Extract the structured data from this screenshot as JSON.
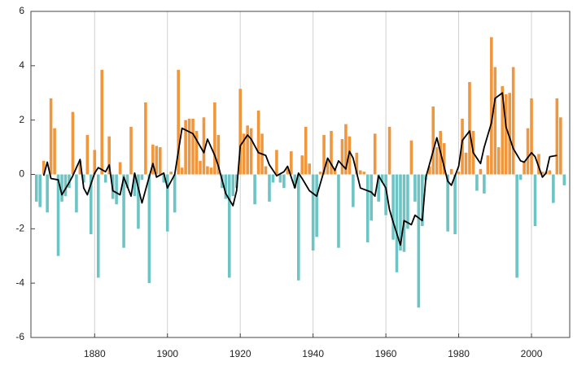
{
  "chart_data": {
    "type": "bar",
    "colors": {
      "positive": "#f0963c",
      "negative": "#6cc4c4"
    },
    "xlim": [
      1862.5,
      2010.5
    ],
    "xticks": [
      1880,
      1900,
      1920,
      1940,
      1960,
      1980,
      2000
    ],
    "ylim": [
      -6,
      6
    ],
    "yticks": [
      -6,
      -4,
      -2,
      0,
      2,
      4,
      6
    ],
    "grid": true,
    "series": [
      {
        "type": "bar",
        "x": [
          1864,
          1865,
          1866,
          1867,
          1868,
          1869,
          1870,
          1871,
          1872,
          1873,
          1874,
          1875,
          1876,
          1877,
          1878,
          1879,
          1880,
          1881,
          1882,
          1883,
          1884,
          1885,
          1886,
          1887,
          1888,
          1889,
          1890,
          1891,
          1892,
          1893,
          1894,
          1895,
          1896,
          1897,
          1898,
          1899,
          1900,
          1901,
          1902,
          1903,
          1904,
          1905,
          1906,
          1907,
          1908,
          1909,
          1910,
          1911,
          1912,
          1913,
          1914,
          1915,
          1916,
          1917,
          1918,
          1919,
          1920,
          1921,
          1922,
          1923,
          1924,
          1925,
          1926,
          1927,
          1928,
          1929,
          1930,
          1931,
          1932,
          1933,
          1934,
          1935,
          1936,
          1937,
          1938,
          1939,
          1940,
          1941,
          1942,
          1943,
          1944,
          1945,
          1946,
          1947,
          1948,
          1949,
          1950,
          1951,
          1952,
          1953,
          1954,
          1955,
          1956,
          1957,
          1958,
          1959,
          1960,
          1961,
          1962,
          1963,
          1964,
          1965,
          1966,
          1967,
          1968,
          1969,
          1970,
          1971,
          1972,
          1973,
          1974,
          1975,
          1976,
          1977,
          1978,
          1979,
          1980,
          1981,
          1982,
          1983,
          1984,
          1985,
          1986,
          1987,
          1988,
          1989,
          1990,
          1991,
          1992,
          1993,
          1994,
          1995,
          1996,
          1997,
          1998,
          1999,
          2000,
          2001,
          2002,
          2003,
          2004,
          2005,
          2006,
          2007,
          2008,
          2009
        ],
        "values": [
          -1.0,
          -1.2,
          0.5,
          -1.4,
          2.8,
          1.7,
          -3.0,
          -1.0,
          -0.8,
          -0.5,
          2.3,
          -1.4,
          0.5,
          -0.3,
          1.45,
          -2.2,
          0.9,
          -3.8,
          3.85,
          -0.3,
          1.4,
          -0.9,
          -1.1,
          0.45,
          -2.7,
          -0.5,
          1.75,
          -0.8,
          -2.0,
          -0.2,
          2.65,
          -4.0,
          1.1,
          1.05,
          1.0,
          -0.3,
          -2.1,
          0.1,
          -1.4,
          3.85,
          0.25,
          2.0,
          2.05,
          2.05,
          1.6,
          0.5,
          2.1,
          0.3,
          0.25,
          2.65,
          1.45,
          -0.5,
          -0.9,
          -3.8,
          -0.8,
          -0.5,
          3.15,
          1.5,
          1.8,
          1.7,
          -1.1,
          2.35,
          1.5,
          0.3,
          -1.0,
          -0.3,
          0.9,
          -0.3,
          -0.5,
          0.2,
          0.85,
          -0.5,
          -3.9,
          0.7,
          1.75,
          0.4,
          -2.8,
          -2.3,
          0.1,
          1.45,
          0.5,
          1.6,
          0.2,
          -2.7,
          1.3,
          1.85,
          1.4,
          -1.2,
          0.8,
          0.15,
          0.1,
          -2.5,
          -1.7,
          1.5,
          -1.0,
          -0.3,
          -1.5,
          1.75,
          -2.4,
          -3.6,
          -2.8,
          -2.85,
          -2.0,
          1.25,
          -1.0,
          -4.9,
          -1.9,
          -0.2,
          0.3,
          2.5,
          1.0,
          1.6,
          1.15,
          -2.1,
          0.2,
          -2.2,
          0.1,
          2.05,
          0.8,
          3.4,
          1.6,
          -0.6,
          0.2,
          -0.7,
          0.7,
          5.05,
          3.95,
          1.0,
          3.25,
          2.95,
          3.0,
          3.95,
          -3.8,
          -0.2,
          0.5,
          1.7,
          2.8,
          -1.9,
          0.75,
          0.1,
          0.1,
          0.15,
          -1.05,
          2.8,
          2.1,
          -0.4
        ]
      },
      {
        "type": "line",
        "color": "#000000",
        "x": [
          1866,
          1867,
          1868,
          1870,
          1871,
          1873,
          1874,
          1876,
          1877,
          1878,
          1880,
          1881,
          1883,
          1884,
          1885,
          1887,
          1888,
          1890,
          1891,
          1893,
          1896,
          1897,
          1899,
          1900,
          1902,
          1904,
          1907,
          1910,
          1911,
          1913,
          1914,
          1916,
          1918,
          1919,
          1920,
          1922,
          1923,
          1925,
          1927,
          1928,
          1930,
          1932,
          1933,
          1935,
          1936,
          1937,
          1939,
          1941,
          1944,
          1946,
          1947,
          1949,
          1950,
          1951,
          1953,
          1956,
          1957,
          1958,
          1960,
          1961,
          1962,
          1964,
          1965,
          1967,
          1968,
          1970,
          1971,
          1974,
          1977,
          1978,
          1980,
          1981,
          1983,
          1984,
          1986,
          1987,
          1989,
          1990,
          1992,
          1993,
          1995,
          1997,
          1998,
          2000,
          2001,
          2003,
          2004,
          2005,
          2007
        ],
        "values": [
          -0.05,
          0.45,
          -0.15,
          -0.2,
          -0.75,
          -0.3,
          -0.05,
          0.55,
          -0.5,
          -0.75,
          0.05,
          0.25,
          0.1,
          0.35,
          -0.6,
          -0.75,
          -0.1,
          -0.8,
          0.05,
          -1.05,
          0.4,
          -0.1,
          0.05,
          -0.5,
          0,
          1.7,
          1.5,
          0.8,
          1.3,
          0.7,
          0.3,
          -0.7,
          -1.15,
          -0.6,
          1.05,
          1.45,
          1.3,
          0.8,
          0.7,
          0.35,
          -0.05,
          0.1,
          0.3,
          -0.5,
          0.05,
          -0.15,
          -0.6,
          -0.8,
          0.6,
          0.15,
          0.5,
          0.2,
          0.85,
          0.6,
          -0.5,
          -0.65,
          -0.8,
          -0.05,
          -0.5,
          -1.3,
          -1.75,
          -2.6,
          -1.7,
          -1.85,
          -1.5,
          -1.7,
          -0.1,
          1.35,
          -0.25,
          -0.4,
          0.3,
          1.25,
          1.6,
          0.8,
          0.4,
          1.0,
          1.9,
          2.8,
          3.0,
          1.75,
          0.95,
          0.5,
          0.45,
          0.8,
          0.65,
          -0.1,
          0.05,
          0.65,
          0.7
        ]
      }
    ]
  }
}
